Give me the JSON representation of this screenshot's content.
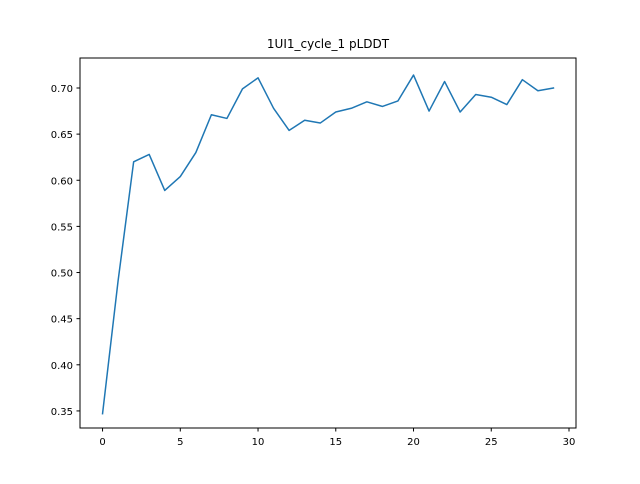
{
  "chart_data": {
    "type": "line",
    "title": "1UI1_cycle_1 pLDDT",
    "xlabel": "",
    "ylabel": "",
    "xlim": [
      -1.45,
      30.45
    ],
    "ylim": [
      0.3315,
      0.7325
    ],
    "xticks": [
      0,
      5,
      10,
      15,
      20,
      25,
      30
    ],
    "yticks": [
      0.35,
      0.4,
      0.45,
      0.5,
      0.55,
      0.6,
      0.65,
      0.7
    ],
    "xtick_labels": [
      "0",
      "5",
      "10",
      "15",
      "20",
      "25",
      "30"
    ],
    "ytick_labels": [
      "0.35",
      "0.40",
      "0.45",
      "0.50",
      "0.55",
      "0.60",
      "0.65",
      "0.70"
    ],
    "grid": false,
    "legend": "none",
    "series": [
      {
        "color": "#1f77b4",
        "x": [
          0,
          1,
          2,
          3,
          4,
          5,
          6,
          7,
          8,
          9,
          10,
          11,
          12,
          13,
          14,
          15,
          16,
          17,
          18,
          19,
          20,
          21,
          22,
          23,
          24,
          25,
          26,
          27,
          28,
          29
        ],
        "y": [
          0.347,
          0.491,
          0.62,
          0.628,
          0.589,
          0.604,
          0.63,
          0.671,
          0.667,
          0.699,
          0.711,
          0.678,
          0.654,
          0.665,
          0.662,
          0.674,
          0.678,
          0.685,
          0.68,
          0.686,
          0.714,
          0.675,
          0.707,
          0.674,
          0.693,
          0.69,
          0.682,
          0.709,
          0.697,
          0.7
        ]
      }
    ]
  }
}
